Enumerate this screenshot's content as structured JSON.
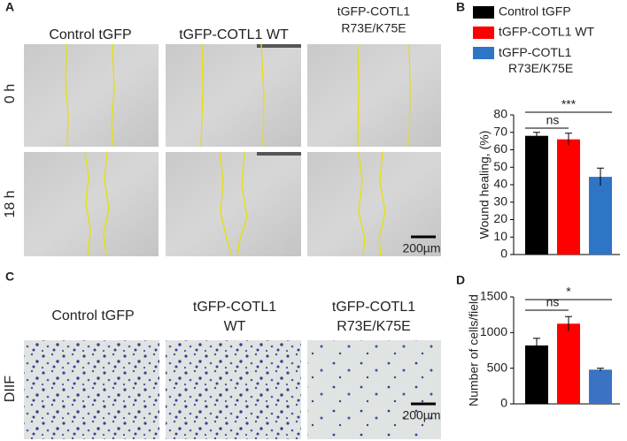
{
  "figure": {
    "panel_labels": [
      "A",
      "B",
      "C",
      "D"
    ],
    "panel_a": {
      "col_headers": [
        "Control tGFP",
        "tGFP-COTL1 WT",
        "tGFP-COTL1",
        "R73E/K75E"
      ],
      "row_labels": [
        "0 h",
        "18 h"
      ],
      "scale_bar": "200µm"
    },
    "panel_c": {
      "col_headers": [
        "Control tGFP",
        "tGFP-COTL1",
        "WT",
        "tGFP-COTL1",
        "R73E/K75E"
      ],
      "row_label": "DIIF",
      "scale_bar": "200µm"
    }
  },
  "chart_data": [
    {
      "type": "bar",
      "categories": [
        "Control tGFP",
        "tGFP-COTL1  WT",
        "tGFP-COTL1\nR73E/K75E"
      ],
      "colors": [
        "#000000",
        "#ff0000",
        "#2e75c6"
      ],
      "values": [
        68,
        66,
        44.5
      ],
      "errors": [
        2,
        3.5,
        5
      ],
      "y_label": "Wound healing, (%)",
      "ylim": [
        0,
        80
      ],
      "yticks": [
        0,
        10,
        20,
        30,
        40,
        50,
        60,
        70,
        80
      ],
      "legend": true,
      "annotations": [
        "ns",
        "***"
      ]
    },
    {
      "type": "bar",
      "categories": [
        null,
        null,
        null
      ],
      "colors": [
        "#000000",
        "#ff0000",
        "#3a72c4"
      ],
      "values": [
        820,
        1125,
        480
      ],
      "errors": [
        100,
        100,
        20
      ],
      "y_label": "Number of cells/field",
      "ylim": [
        0,
        1500
      ],
      "yticks": [
        0,
        500,
        1000,
        1500
      ],
      "legend": false,
      "annotations": [
        "ns",
        "*"
      ]
    }
  ]
}
